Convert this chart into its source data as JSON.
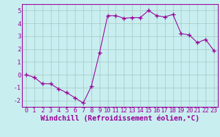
{
  "x": [
    0,
    1,
    2,
    3,
    4,
    5,
    6,
    7,
    8,
    9,
    10,
    11,
    12,
    13,
    14,
    15,
    16,
    17,
    18,
    19,
    20,
    21,
    22,
    23
  ],
  "y": [
    0.0,
    -0.2,
    -0.7,
    -0.7,
    -1.1,
    -1.4,
    -1.8,
    -2.2,
    -0.9,
    1.7,
    4.6,
    4.6,
    4.4,
    4.45,
    4.45,
    5.0,
    4.6,
    4.5,
    4.7,
    3.2,
    3.1,
    2.5,
    2.75,
    1.9
  ],
  "line_color": "#990099",
  "marker": "+",
  "marker_size": 4,
  "bg_color": "#c8eef0",
  "grid_color": "#aaccc8",
  "xlabel": "Windchill (Refroidissement éolien,°C)",
  "xlim": [
    -0.5,
    23.5
  ],
  "ylim": [
    -2.5,
    5.5
  ],
  "yticks": [
    -2,
    -1,
    0,
    1,
    2,
    3,
    4,
    5
  ],
  "xticks": [
    0,
    1,
    2,
    3,
    4,
    5,
    6,
    7,
    8,
    9,
    10,
    11,
    12,
    13,
    14,
    15,
    16,
    17,
    18,
    19,
    20,
    21,
    22,
    23
  ],
  "tick_fontsize": 6.5,
  "xlabel_fontsize": 7.5
}
